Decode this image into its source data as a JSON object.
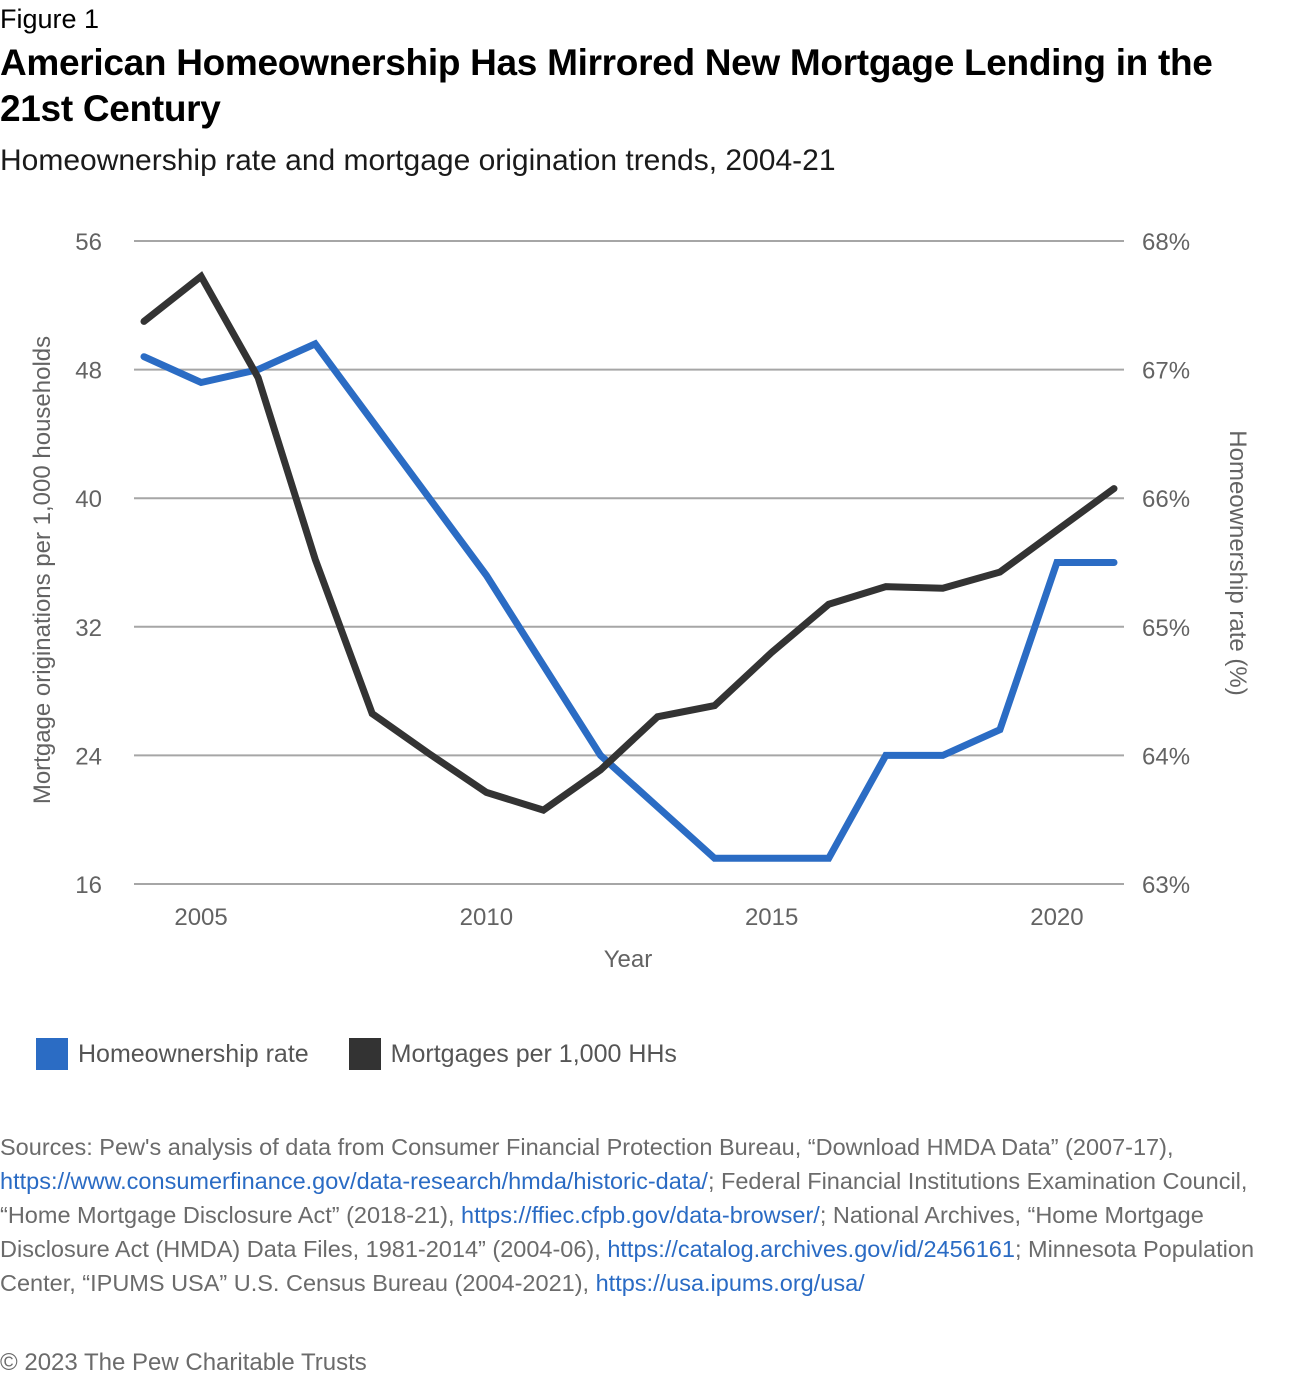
{
  "figure_label": "Figure 1",
  "title": "American Homeownership Has Mirrored New Mortgage Lending in the 21st Century",
  "subtitle": "Homeownership rate and mortgage origination trends, 2004-21",
  "colors": {
    "homeownership": "#2b6cc4",
    "mortgages": "#333333",
    "grid": "#a6a6a6",
    "link": "#2a6bc4"
  },
  "chart_data": {
    "type": "line",
    "title": "American Homeownership Has Mirrored New Mortgage Lending in the 21st Century",
    "subtitle": "Homeownership rate and mortgage origination trends, 2004-21",
    "xlabel": "Year",
    "ylabel_left": "Mortgage originations per 1,000 households",
    "ylabel_right": "Homeownership rate (%)",
    "x": [
      2004,
      2005,
      2006,
      2007,
      2008,
      2009,
      2010,
      2011,
      2012,
      2013,
      2014,
      2015,
      2016,
      2017,
      2018,
      2019,
      2020,
      2021
    ],
    "xlim": [
      2004,
      2021
    ],
    "x_ticks": [
      2005,
      2010,
      2015,
      2020
    ],
    "x_tick_labels": [
      "2005",
      "2010",
      "2015",
      "2020"
    ],
    "ylim_left": [
      16,
      56
    ],
    "y_ticks_left": [
      56,
      48,
      40,
      32,
      24,
      16
    ],
    "y_tick_labels_left": [
      "56",
      "48",
      "40",
      "32",
      "24",
      "16"
    ],
    "ylim_right": [
      63,
      68
    ],
    "y_ticks_right": [
      68,
      67,
      66,
      65,
      64,
      63
    ],
    "y_tick_labels_right": [
      "68%",
      "67%",
      "66%",
      "65%",
      "64%",
      "63%"
    ],
    "grid": true,
    "legend_position": "bottom-left",
    "series": [
      {
        "name": "Homeownership rate",
        "axis": "right",
        "color": "#2b6cc4",
        "values": [
          67.1,
          66.9,
          67.0,
          67.2,
          66.6,
          66.0,
          65.4,
          64.7,
          64.0,
          63.6,
          63.2,
          63.2,
          63.2,
          64.0,
          64.0,
          64.2,
          65.5,
          65.5
        ]
      },
      {
        "name": "Mortgages per 1,000 HHs",
        "axis": "left",
        "color": "#333333",
        "values": [
          51.0,
          53.8,
          47.5,
          36.2,
          26.6,
          24.1,
          21.7,
          20.6,
          23.1,
          26.4,
          27.1,
          30.4,
          33.4,
          34.5,
          34.4,
          35.4,
          38.0,
          40.6
        ]
      }
    ]
  },
  "legend": [
    {
      "label": "Homeownership rate",
      "color": "#2b6cc4"
    },
    {
      "label": "Mortgages per 1,000 HHs",
      "color": "#333333"
    }
  ],
  "sources": {
    "prefix": "Sources: Pew's analysis of data from Consumer Financial Protection Bureau, “Download HMDA Data” (2007-17), ",
    "link1": "https://www.consumerfinance.gov/data-research/hmda/historic-data/",
    "text2": "; Federal Financial Institutions Examination Council, “Home Mortgage Disclosure Act” (2018-21), ",
    "link2": "https://ffiec.cfpb.gov/data-browser/",
    "text3": "; National Archives, “Home Mortgage Disclosure Act (HMDA) Data Files, 1981-2014” (2004-06), ",
    "link3": "https://catalog.archives.gov/id/2456161",
    "text4": "; Minnesota Population Center, “IPUMS USA” U.S. Census Bureau (2004-2021), ",
    "link4": "https://usa.ipums.org/usa/"
  },
  "copyright": "© 2023 The Pew Charitable Trusts"
}
